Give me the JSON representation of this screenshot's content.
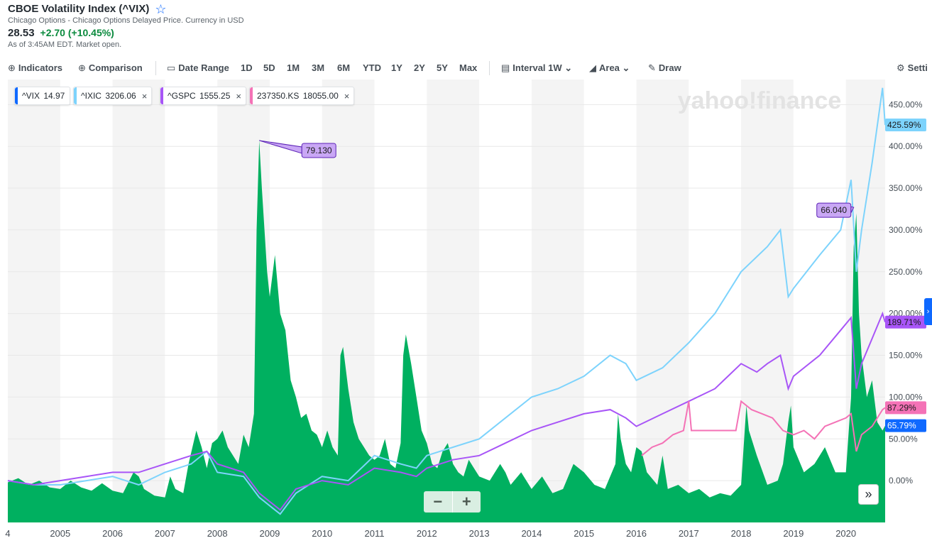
{
  "header": {
    "title": "CBOE Volatility Index (^VIX)",
    "subtitle": "Chicago Options - Chicago Options Delayed Price. Currency in USD",
    "price": "28.53",
    "change": "+2.70 (+10.45%)",
    "as_of": "As of 3:45AM EDT. Market open."
  },
  "toolbar": {
    "indicators": "Indicators",
    "comparison": "Comparison",
    "date_range": "Date Range",
    "ranges": [
      "1D",
      "5D",
      "1M",
      "3M",
      "6M",
      "YTD",
      "1Y",
      "2Y",
      "5Y",
      "Max"
    ],
    "interval_label": "Interval",
    "interval_value": "1W",
    "chart_type": "Area",
    "draw": "Draw",
    "settings": "Setti"
  },
  "chips": [
    {
      "symbol": "^VIX",
      "value": "14.97",
      "color": "#0f69ff",
      "closable": false
    },
    {
      "symbol": "^IXIC",
      "value": "3206.06",
      "color": "#7dd3fc",
      "closable": true
    },
    {
      "symbol": "^GSPC",
      "value": "1555.25",
      "color": "#a855f7",
      "closable": true
    },
    {
      "symbol": "237350.KS",
      "value": "18055.00",
      "color": "#f472b6",
      "closable": true
    }
  ],
  "watermark": "yahoo!finance",
  "chart_data": {
    "type": "area",
    "x_range": [
      2004.0,
      2020.75
    ],
    "x_ticks": [
      {
        "year": 2004,
        "label": "4"
      },
      {
        "year": 2005,
        "label": "2005"
      },
      {
        "year": 2006,
        "label": "2006"
      },
      {
        "year": 2007,
        "label": "2007"
      },
      {
        "year": 2008,
        "label": "2008"
      },
      {
        "year": 2009,
        "label": "2009"
      },
      {
        "year": 2010,
        "label": "2010"
      },
      {
        "year": 2011,
        "label": "2011"
      },
      {
        "year": 2012,
        "label": "2012"
      },
      {
        "year": 2013,
        "label": "2013"
      },
      {
        "year": 2014,
        "label": "2014"
      },
      {
        "year": 2015,
        "label": "2015"
      },
      {
        "year": 2016,
        "label": "2016"
      },
      {
        "year": 2017,
        "label": "2017"
      },
      {
        "year": 2018,
        "label": "2018"
      },
      {
        "year": 2019,
        "label": "2019"
      },
      {
        "year": 2020,
        "label": "2020"
      }
    ],
    "y_axis": {
      "unit": "%",
      "ticks": [
        "450.00%",
        "400.00%",
        "350.00%",
        "300.00%",
        "250.00%",
        "200.00%",
        "150.00%",
        "100.00%",
        "50.00%",
        "0.00%"
      ],
      "tick_values": [
        450,
        400,
        350,
        300,
        250,
        200,
        150,
        100,
        50,
        0
      ],
      "range": [
        -50,
        480
      ]
    },
    "series": [
      {
        "name": "^VIX",
        "color": "#00b060",
        "points": [
          [
            2004.0,
            -2
          ],
          [
            2004.2,
            3
          ],
          [
            2004.4,
            -5
          ],
          [
            2004.6,
            0
          ],
          [
            2004.8,
            -8
          ],
          [
            2005.0,
            -10
          ],
          [
            2005.2,
            0
          ],
          [
            2005.4,
            -8
          ],
          [
            2005.6,
            -12
          ],
          [
            2005.8,
            -3
          ],
          [
            2006.0,
            -12
          ],
          [
            2006.2,
            -15
          ],
          [
            2006.4,
            10
          ],
          [
            2006.5,
            5
          ],
          [
            2006.6,
            -10
          ],
          [
            2006.8,
            -18
          ],
          [
            2007.0,
            -20
          ],
          [
            2007.1,
            5
          ],
          [
            2007.2,
            -10
          ],
          [
            2007.35,
            -15
          ],
          [
            2007.45,
            20
          ],
          [
            2007.6,
            60
          ],
          [
            2007.7,
            40
          ],
          [
            2007.8,
            15
          ],
          [
            2007.9,
            45
          ],
          [
            2008.0,
            50
          ],
          [
            2008.1,
            60
          ],
          [
            2008.2,
            40
          ],
          [
            2008.4,
            20
          ],
          [
            2008.5,
            55
          ],
          [
            2008.6,
            40
          ],
          [
            2008.7,
            80
          ],
          [
            2008.75,
            300
          ],
          [
            2008.8,
            407
          ],
          [
            2008.85,
            350
          ],
          [
            2008.9,
            300
          ],
          [
            2008.95,
            250
          ],
          [
            2009.0,
            220
          ],
          [
            2009.1,
            270
          ],
          [
            2009.2,
            200
          ],
          [
            2009.3,
            180
          ],
          [
            2009.4,
            120
          ],
          [
            2009.5,
            100
          ],
          [
            2009.6,
            75
          ],
          [
            2009.7,
            80
          ],
          [
            2009.8,
            60
          ],
          [
            2009.9,
            55
          ],
          [
            2010.0,
            40
          ],
          [
            2010.1,
            60
          ],
          [
            2010.2,
            40
          ],
          [
            2010.3,
            30
          ],
          [
            2010.35,
            150
          ],
          [
            2010.4,
            160
          ],
          [
            2010.5,
            110
          ],
          [
            2010.6,
            70
          ],
          [
            2010.7,
            50
          ],
          [
            2010.8,
            40
          ],
          [
            2010.9,
            30
          ],
          [
            2011.0,
            25
          ],
          [
            2011.1,
            30
          ],
          [
            2011.2,
            50
          ],
          [
            2011.3,
            20
          ],
          [
            2011.4,
            15
          ],
          [
            2011.5,
            45
          ],
          [
            2011.55,
            150
          ],
          [
            2011.6,
            175
          ],
          [
            2011.7,
            140
          ],
          [
            2011.8,
            100
          ],
          [
            2011.9,
            60
          ],
          [
            2012.0,
            45
          ],
          [
            2012.1,
            20
          ],
          [
            2012.2,
            15
          ],
          [
            2012.3,
            35
          ],
          [
            2012.4,
            45
          ],
          [
            2012.5,
            20
          ],
          [
            2012.6,
            10
          ],
          [
            2012.7,
            5
          ],
          [
            2012.8,
            25
          ],
          [
            2012.9,
            15
          ],
          [
            2013.0,
            5
          ],
          [
            2013.2,
            0
          ],
          [
            2013.4,
            20
          ],
          [
            2013.5,
            10
          ],
          [
            2013.6,
            -5
          ],
          [
            2013.8,
            10
          ],
          [
            2014.0,
            -10
          ],
          [
            2014.2,
            5
          ],
          [
            2014.4,
            -15
          ],
          [
            2014.6,
            -10
          ],
          [
            2014.8,
            20
          ],
          [
            2015.0,
            10
          ],
          [
            2015.2,
            -5
          ],
          [
            2015.4,
            -10
          ],
          [
            2015.6,
            20
          ],
          [
            2015.65,
            80
          ],
          [
            2015.7,
            50
          ],
          [
            2015.8,
            20
          ],
          [
            2015.9,
            10
          ],
          [
            2016.0,
            40
          ],
          [
            2016.1,
            35
          ],
          [
            2016.2,
            10
          ],
          [
            2016.4,
            -5
          ],
          [
            2016.5,
            30
          ],
          [
            2016.6,
            -10
          ],
          [
            2016.8,
            -5
          ],
          [
            2017.0,
            -15
          ],
          [
            2017.2,
            -10
          ],
          [
            2017.4,
            -20
          ],
          [
            2017.6,
            -15
          ],
          [
            2017.8,
            -18
          ],
          [
            2018.0,
            -5
          ],
          [
            2018.1,
            90
          ],
          [
            2018.15,
            60
          ],
          [
            2018.3,
            30
          ],
          [
            2018.5,
            -5
          ],
          [
            2018.7,
            0
          ],
          [
            2018.8,
            20
          ],
          [
            2018.9,
            70
          ],
          [
            2018.95,
            90
          ],
          [
            2019.0,
            40
          ],
          [
            2019.2,
            10
          ],
          [
            2019.4,
            20
          ],
          [
            2019.6,
            40
          ],
          [
            2019.8,
            10
          ],
          [
            2020.0,
            10
          ],
          [
            2020.1,
            100
          ],
          [
            2020.15,
            280
          ],
          [
            2020.2,
            320
          ],
          [
            2020.25,
            200
          ],
          [
            2020.3,
            150
          ],
          [
            2020.4,
            100
          ],
          [
            2020.5,
            120
          ],
          [
            2020.6,
            70
          ],
          [
            2020.7,
            60
          ],
          [
            2020.75,
            65.79
          ]
        ]
      },
      {
        "name": "^IXIC",
        "color": "#7dd3fc",
        "points": [
          [
            2004.0,
            0
          ],
          [
            2004.5,
            -5
          ],
          [
            2005.0,
            -5
          ],
          [
            2005.5,
            0
          ],
          [
            2006.0,
            5
          ],
          [
            2006.5,
            -5
          ],
          [
            2007.0,
            10
          ],
          [
            2007.5,
            20
          ],
          [
            2007.8,
            35
          ],
          [
            2008.0,
            10
          ],
          [
            2008.5,
            5
          ],
          [
            2008.8,
            -20
          ],
          [
            2009.0,
            -30
          ],
          [
            2009.2,
            -40
          ],
          [
            2009.5,
            -15
          ],
          [
            2010.0,
            5
          ],
          [
            2010.5,
            0
          ],
          [
            2011.0,
            30
          ],
          [
            2011.5,
            20
          ],
          [
            2011.8,
            15
          ],
          [
            2012.0,
            30
          ],
          [
            2012.5,
            40
          ],
          [
            2013.0,
            50
          ],
          [
            2013.5,
            75
          ],
          [
            2014.0,
            100
          ],
          [
            2014.5,
            110
          ],
          [
            2015.0,
            125
          ],
          [
            2015.5,
            150
          ],
          [
            2015.8,
            140
          ],
          [
            2016.0,
            120
          ],
          [
            2016.5,
            135
          ],
          [
            2017.0,
            165
          ],
          [
            2017.5,
            200
          ],
          [
            2018.0,
            250
          ],
          [
            2018.5,
            280
          ],
          [
            2018.75,
            300
          ],
          [
            2018.9,
            220
          ],
          [
            2019.0,
            230
          ],
          [
            2019.5,
            270
          ],
          [
            2019.9,
            300
          ],
          [
            2020.1,
            360
          ],
          [
            2020.2,
            250
          ],
          [
            2020.3,
            300
          ],
          [
            2020.5,
            380
          ],
          [
            2020.7,
            470
          ],
          [
            2020.75,
            425.59
          ]
        ]
      },
      {
        "name": "^GSPC",
        "color": "#a855f7",
        "points": [
          [
            2004.0,
            0
          ],
          [
            2004.5,
            -5
          ],
          [
            2005.0,
            0
          ],
          [
            2005.5,
            5
          ],
          [
            2006.0,
            10
          ],
          [
            2006.5,
            10
          ],
          [
            2007.0,
            20
          ],
          [
            2007.5,
            30
          ],
          [
            2007.8,
            35
          ],
          [
            2008.0,
            20
          ],
          [
            2008.5,
            10
          ],
          [
            2008.8,
            -15
          ],
          [
            2009.0,
            -25
          ],
          [
            2009.2,
            -35
          ],
          [
            2009.5,
            -10
          ],
          [
            2010.0,
            0
          ],
          [
            2010.5,
            -5
          ],
          [
            2011.0,
            15
          ],
          [
            2011.5,
            10
          ],
          [
            2011.8,
            5
          ],
          [
            2012.0,
            15
          ],
          [
            2012.5,
            25
          ],
          [
            2013.0,
            30
          ],
          [
            2013.5,
            45
          ],
          [
            2014.0,
            60
          ],
          [
            2014.5,
            70
          ],
          [
            2015.0,
            80
          ],
          [
            2015.5,
            85
          ],
          [
            2015.8,
            75
          ],
          [
            2016.0,
            65
          ],
          [
            2016.5,
            80
          ],
          [
            2017.0,
            95
          ],
          [
            2017.5,
            110
          ],
          [
            2018.0,
            140
          ],
          [
            2018.3,
            130
          ],
          [
            2018.5,
            140
          ],
          [
            2018.75,
            150
          ],
          [
            2018.9,
            110
          ],
          [
            2019.0,
            125
          ],
          [
            2019.5,
            150
          ],
          [
            2019.9,
            180
          ],
          [
            2020.1,
            195
          ],
          [
            2020.2,
            110
          ],
          [
            2020.3,
            140
          ],
          [
            2020.5,
            170
          ],
          [
            2020.7,
            200
          ],
          [
            2020.75,
            189.71
          ]
        ]
      },
      {
        "name": "237350.KS",
        "color": "#f472b6",
        "points": [
          [
            2016.1,
            30
          ],
          [
            2016.3,
            40
          ],
          [
            2016.5,
            45
          ],
          [
            2016.7,
            55
          ],
          [
            2016.9,
            60
          ],
          [
            2017.0,
            95
          ],
          [
            2017.05,
            60
          ],
          [
            2017.3,
            60
          ],
          [
            2017.6,
            60
          ],
          [
            2017.9,
            60
          ],
          [
            2018.0,
            95
          ],
          [
            2018.2,
            85
          ],
          [
            2018.4,
            80
          ],
          [
            2018.6,
            75
          ],
          [
            2018.8,
            60
          ],
          [
            2019.0,
            55
          ],
          [
            2019.2,
            60
          ],
          [
            2019.4,
            50
          ],
          [
            2019.6,
            65
          ],
          [
            2019.8,
            70
          ],
          [
            2020.0,
            75
          ],
          [
            2020.1,
            80
          ],
          [
            2020.2,
            35
          ],
          [
            2020.3,
            55
          ],
          [
            2020.5,
            65
          ],
          [
            2020.7,
            85
          ],
          [
            2020.75,
            87.29
          ]
        ]
      }
    ],
    "last_labels": [
      {
        "series": "^IXIC",
        "label": "425.59%",
        "value": 425.59,
        "bg": "#7dd3fc",
        "fg": "#1a1a1a"
      },
      {
        "series": "^GSPC",
        "label": "189.71%",
        "value": 189.71,
        "bg": "#a855f7",
        "fg": "#1a1a1a"
      },
      {
        "series": "237350.KS",
        "label": "87.29%",
        "value": 87.29,
        "bg": "#f472b6",
        "fg": "#1a1a1a"
      },
      {
        "series": "^VIX",
        "label": "65.79%",
        "value": 65.79,
        "bg": "#0f69ff",
        "fg": "#ffffff"
      }
    ],
    "annotations": [
      {
        "label": "79.130",
        "x": 2008.8,
        "y": 407,
        "dx": 60,
        "dy": 4
      },
      {
        "label": "66.040",
        "x": 2020.15,
        "y": 327,
        "dx": -52,
        "dy": -6
      }
    ]
  }
}
